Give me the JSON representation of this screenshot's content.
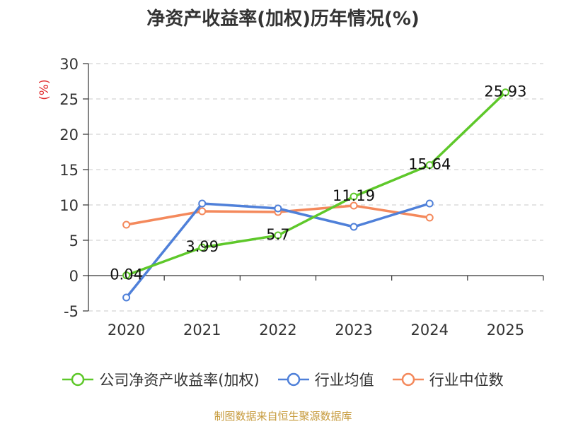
{
  "colors": {
    "company": "#5ec82a",
    "industry_avg": "#4f80d9",
    "industry_median": "#f4895c",
    "axis_unit": "#e0282a",
    "source": "#c69a3b"
  },
  "source_text": "制图数据来自恒生聚源数据库",
  "chart_data": {
    "type": "line",
    "title": "净资产收益率(加权)历年情况(%)",
    "ylabel": "(%)",
    "xlabel": "",
    "categories": [
      "2020",
      "2021",
      "2022",
      "2023",
      "2024",
      "2025"
    ],
    "ylim": [
      -5,
      30
    ],
    "yticks": [
      -5,
      0,
      5,
      10,
      15,
      20,
      25,
      30
    ],
    "grid": true,
    "legend_position": "bottom",
    "series": [
      {
        "name": "公司净资产收益率(加权)",
        "values": [
          0.04,
          3.99,
          5.7,
          11.19,
          15.64,
          25.93
        ],
        "labels": [
          "0.04",
          "3.99",
          "5.7",
          "11.19",
          "15.64",
          "25.93"
        ],
        "color_key": "company"
      },
      {
        "name": "行业均值",
        "values": [
          -3.1,
          10.2,
          9.5,
          6.9,
          10.2,
          null
        ],
        "color_key": "industry_avg"
      },
      {
        "name": "行业中位数",
        "values": [
          7.2,
          9.1,
          9.0,
          9.9,
          8.2,
          null
        ],
        "color_key": "industry_median"
      }
    ]
  }
}
